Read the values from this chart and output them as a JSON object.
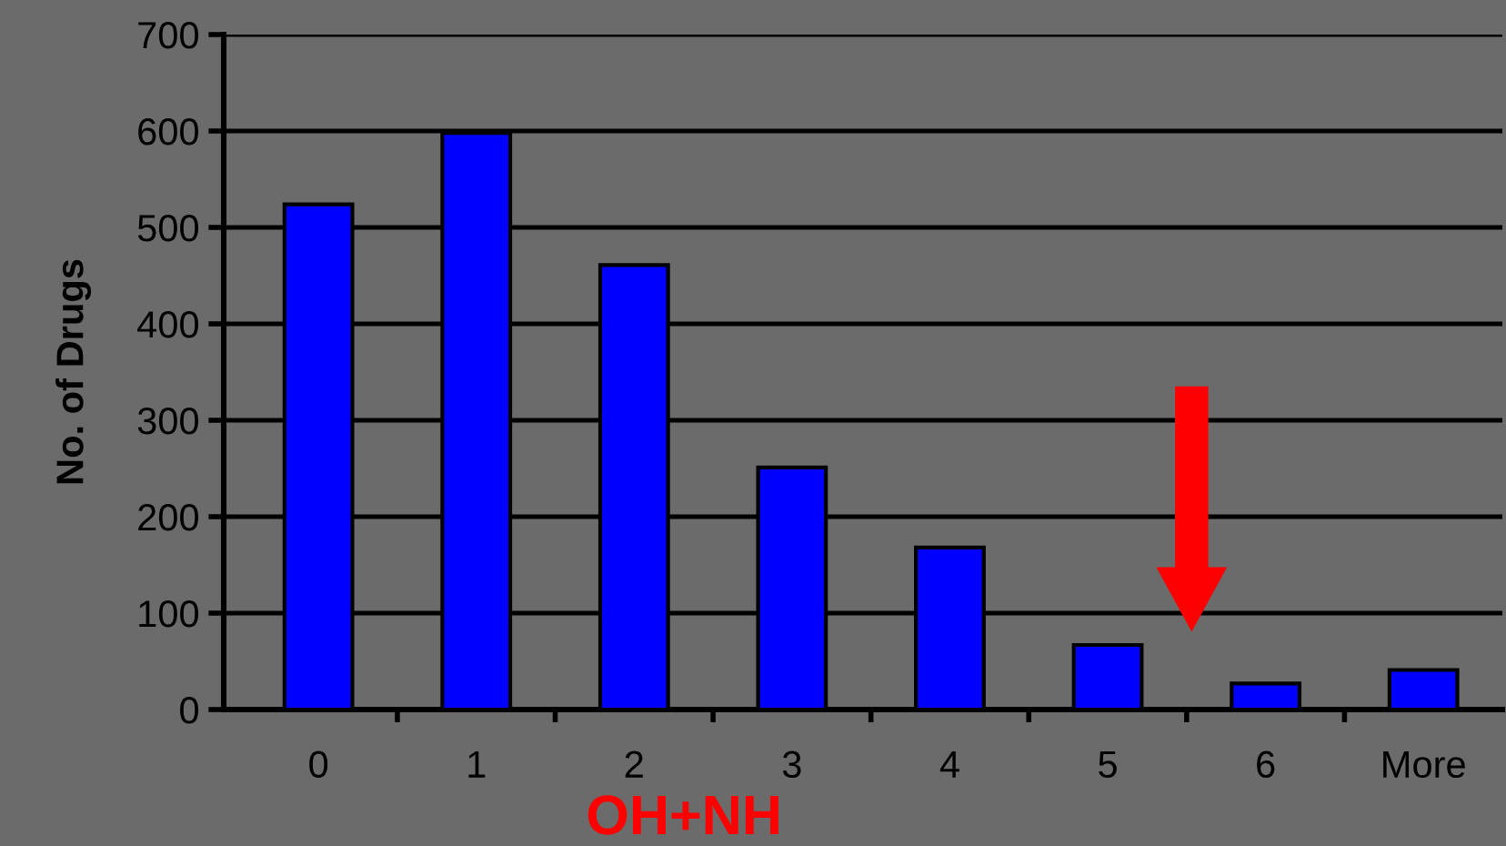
{
  "chart_data": {
    "type": "bar",
    "xlabel": "OH+NH",
    "ylabel": "No. of Drugs",
    "categories": [
      "0",
      "1",
      "2",
      "3",
      "4",
      "5",
      "6",
      "More"
    ],
    "values": [
      524,
      598,
      461,
      251,
      168,
      67,
      27,
      41
    ],
    "color": "#0000ff",
    "ylim": [
      0,
      700
    ],
    "yticks": [
      0,
      100,
      200,
      300,
      400,
      500,
      600,
      700
    ],
    "grid": "y"
  }
}
